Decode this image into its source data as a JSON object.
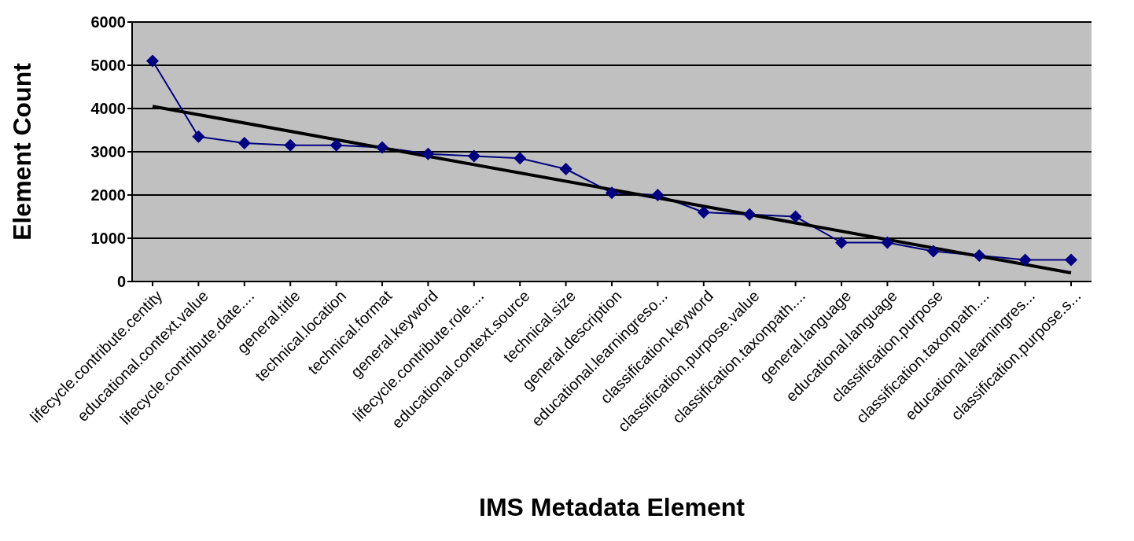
{
  "chart_data": {
    "type": "line",
    "xlabel": "IMS Metadata Element",
    "ylabel": "Element Count",
    "categories": [
      "lifecycle.contribute.centity",
      "educational.context.value",
      "lifecycle.contribute.date....",
      "general.title",
      "technical.location",
      "technical.format",
      "general.keyword",
      "lifecycle.contribute.role....",
      "educational.context.source",
      "technical.size",
      "general.description",
      "educational.learningreso...",
      "classification.keyword",
      "classification.purpose.value",
      "classification.taxonpath....",
      "general.language",
      "educational.language",
      "classification.purpose",
      "classification.taxonpath....",
      "educational.learningres...",
      "classification.purpose.s..."
    ],
    "series": [
      {
        "color": "#000080",
        "marker": "diamond",
        "values": [
          5100,
          3350,
          3200,
          3150,
          3150,
          3100,
          2950,
          2900,
          2850,
          2600,
          2050,
          2000,
          1600,
          1550,
          1500,
          900,
          900,
          700,
          600,
          500,
          500
        ]
      },
      {
        "color": "#000000",
        "marker": "none",
        "values": [
          4050,
          null,
          null,
          null,
          null,
          null,
          null,
          null,
          null,
          null,
          null,
          null,
          null,
          null,
          null,
          null,
          null,
          null,
          null,
          null,
          200
        ]
      }
    ],
    "ylim": [
      0,
      6000
    ],
    "yticks": [
      0,
      1000,
      2000,
      3000,
      4000,
      5000,
      6000
    ],
    "grid": "y"
  }
}
